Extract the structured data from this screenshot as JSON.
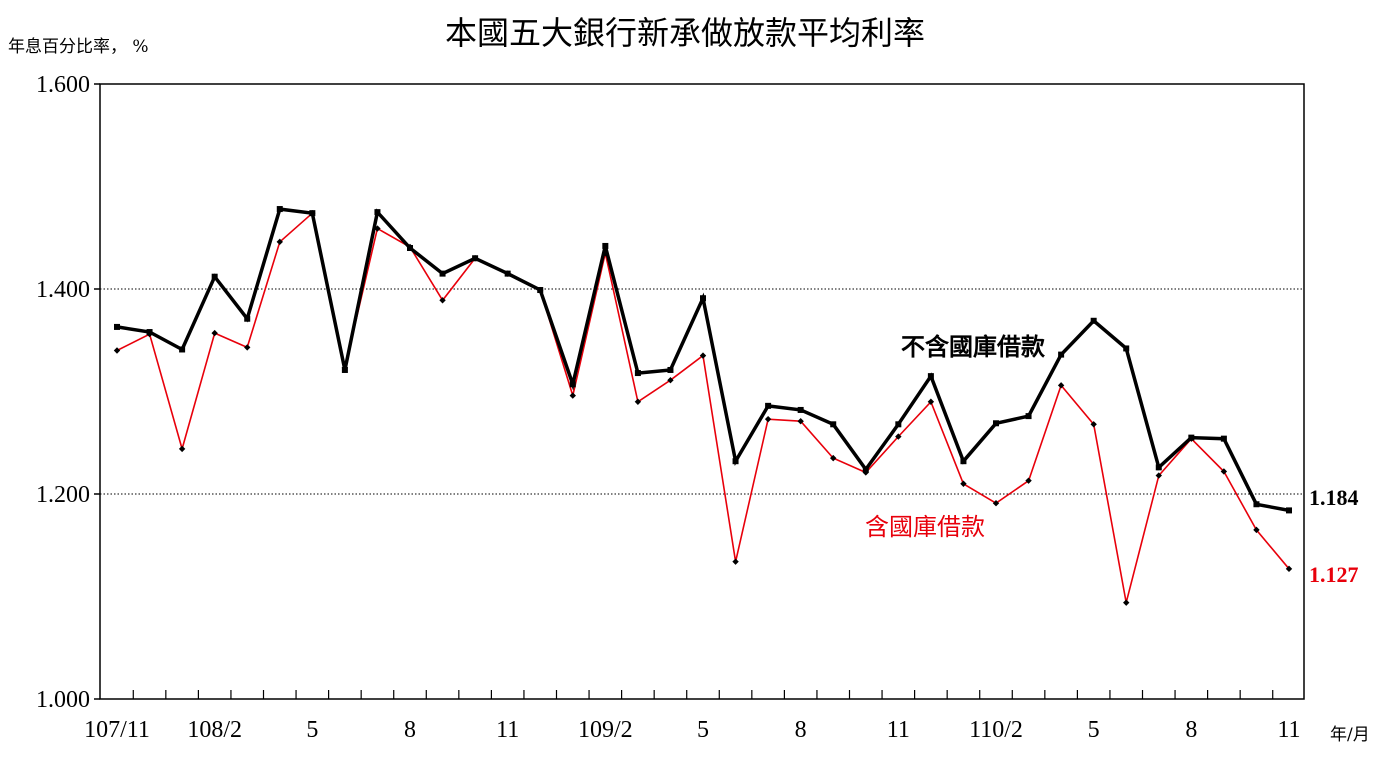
{
  "chart_data": {
    "type": "line",
    "title": "本國五大銀行新承做放款平均利率",
    "ylabel": "年息百分比率， %",
    "xlabel": "年/月",
    "ylim": [
      1.0,
      1.6
    ],
    "yticks": [
      "1.000",
      "1.200",
      "1.400",
      "1.600"
    ],
    "ytick_values": [
      1.0,
      1.2,
      1.4,
      1.6
    ],
    "grid": "horizontal-dotted",
    "xtick_labels": [
      {
        "index": 0,
        "label": "107/11"
      },
      {
        "index": 3,
        "label": "108/2"
      },
      {
        "index": 6,
        "label": "5"
      },
      {
        "index": 9,
        "label": "8"
      },
      {
        "index": 12,
        "label": "11"
      },
      {
        "index": 15,
        "label": "109/2"
      },
      {
        "index": 18,
        "label": "5"
      },
      {
        "index": 21,
        "label": "8"
      },
      {
        "index": 24,
        "label": "11"
      },
      {
        "index": 27,
        "label": "110/2"
      },
      {
        "index": 30,
        "label": "5"
      },
      {
        "index": 33,
        "label": "8"
      },
      {
        "index": 36,
        "label": "11"
      }
    ],
    "series": [
      {
        "name": "不含國庫借款",
        "color": "#000000",
        "end_label": "1.184",
        "values": [
          1.363,
          1.358,
          1.341,
          1.412,
          1.371,
          1.478,
          1.474,
          1.321,
          1.475,
          1.44,
          1.415,
          1.43,
          1.415,
          1.399,
          1.307,
          1.442,
          1.318,
          1.321,
          1.391,
          1.232,
          1.286,
          1.282,
          1.268,
          1.224,
          1.268,
          1.315,
          1.232,
          1.269,
          1.276,
          1.336,
          1.369,
          1.342,
          1.226,
          1.255,
          1.254,
          1.19,
          1.184
        ]
      },
      {
        "name": "含國庫借款",
        "color": "#e8000b",
        "end_label": "1.127",
        "values": [
          1.34,
          1.356,
          1.244,
          1.357,
          1.343,
          1.446,
          1.474,
          1.323,
          1.459,
          1.441,
          1.389,
          1.43,
          1.415,
          1.399,
          1.296,
          1.435,
          1.29,
          1.311,
          1.335,
          1.134,
          1.273,
          1.271,
          1.235,
          1.221,
          1.256,
          1.29,
          1.21,
          1.191,
          1.213,
          1.306,
          1.268,
          1.094,
          1.218,
          1.254,
          1.222,
          1.165,
          1.127
        ]
      }
    ]
  }
}
